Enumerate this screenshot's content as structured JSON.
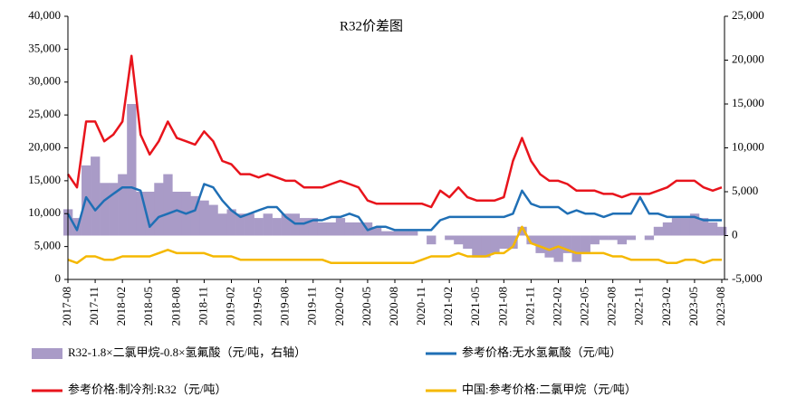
{
  "chart_data": {
    "type": "combo",
    "title": "R32价差图",
    "categories": [
      "2017-08",
      null,
      null,
      "2017-11",
      null,
      null,
      "2018-02",
      null,
      null,
      "2018-05",
      null,
      null,
      "2018-08",
      null,
      null,
      "2018-11",
      null,
      null,
      "2019-02",
      null,
      null,
      "2019-05",
      null,
      null,
      "2019-08",
      null,
      null,
      "2019-11",
      null,
      null,
      "2020-02",
      null,
      null,
      "2020-05",
      null,
      null,
      "2020-08",
      null,
      null,
      "2020-11",
      null,
      null,
      "2021-02",
      null,
      null,
      "2021-05",
      null,
      null,
      "2021-08",
      null,
      null,
      "2021-11",
      null,
      null,
      "2022-02",
      null,
      null,
      "2022-05",
      null,
      null,
      "2022-08",
      null,
      null,
      "2022-11",
      null,
      null,
      "2023-02",
      null,
      null,
      "2023-05",
      null,
      null,
      "2023-08"
    ],
    "series": [
      {
        "name": "R32-1.8×二氯甲烷-0.8×氢氟酸（元/吨，右轴）",
        "type": "area",
        "axis": "y2",
        "color": "#a99bc7",
        "values": [
          3000,
          2000,
          8000,
          9000,
          6000,
          6000,
          7000,
          15000,
          5000,
          5000,
          6000,
          7000,
          5000,
          5000,
          4500,
          4000,
          3500,
          2500,
          3000,
          2500,
          2500,
          2000,
          2500,
          2000,
          2500,
          2500,
          2000,
          2000,
          1500,
          1500,
          2000,
          1500,
          1500,
          1500,
          1000,
          500,
          500,
          500,
          500,
          0,
          -1000,
          0,
          -500,
          -1000,
          -1500,
          -2500,
          -2500,
          -2000,
          -1500,
          -1500,
          1000,
          -1000,
          -2000,
          -2500,
          -3000,
          -2000,
          -3000,
          -2000,
          -1000,
          -500,
          -500,
          -1000,
          -500,
          0,
          -500,
          1000,
          1500,
          2000,
          2000,
          2500,
          2000,
          1500,
          1000
        ]
      },
      {
        "name": "参考价格:无水氢氟酸（元/吨）",
        "type": "line",
        "color": "#1f6fb5",
        "values": [
          10000,
          7500,
          12500,
          10500,
          12000,
          13000,
          14000,
          14000,
          13500,
          8000,
          9500,
          10000,
          10500,
          10000,
          10500,
          14500,
          14000,
          12000,
          10500,
          9500,
          10000,
          10500,
          11000,
          11000,
          9500,
          8500,
          8500,
          9000,
          9000,
          9500,
          9500,
          10000,
          9500,
          7500,
          8000,
          8000,
          7500,
          7500,
          7500,
          7500,
          7500,
          9000,
          9500,
          9500,
          9500,
          9500,
          9500,
          9500,
          9500,
          10000,
          13500,
          11500,
          11000,
          11000,
          11000,
          10000,
          10500,
          10000,
          10000,
          9500,
          10000,
          10000,
          10000,
          12500,
          10000,
          10000,
          9500,
          9500,
          9500,
          9500,
          9000,
          9000,
          9000
        ]
      },
      {
        "name": "参考价格:制冷剂:R32（元/吨）",
        "type": "line",
        "color": "#e8141c",
        "values": [
          16000,
          14000,
          24000,
          24000,
          21000,
          22000,
          24000,
          34000,
          22000,
          19000,
          21000,
          24000,
          21500,
          21000,
          20500,
          22500,
          21000,
          18000,
          17500,
          16000,
          16000,
          15500,
          16000,
          15500,
          15000,
          15000,
          14000,
          14000,
          14000,
          14500,
          15000,
          14500,
          14000,
          12000,
          11500,
          11500,
          11500,
          11500,
          11500,
          11500,
          11000,
          13500,
          12500,
          14000,
          12500,
          12000,
          12000,
          12000,
          12500,
          18000,
          21500,
          18000,
          16000,
          15000,
          15000,
          14500,
          13500,
          13500,
          13500,
          13000,
          13000,
          12500,
          13000,
          13000,
          13000,
          13500,
          14000,
          15000,
          15000,
          15000,
          14000,
          13500,
          14000
        ]
      },
      {
        "name": "中国:参考价格:二氯甲烷（元/吨）",
        "type": "line",
        "color": "#f5b800",
        "values": [
          3000,
          2500,
          3500,
          3500,
          3000,
          3000,
          3500,
          3500,
          3500,
          3500,
          4000,
          4500,
          4000,
          4000,
          4000,
          4000,
          3500,
          3500,
          3500,
          3000,
          3000,
          3000,
          3000,
          3000,
          3000,
          3000,
          3000,
          3000,
          3000,
          2500,
          2500,
          2500,
          2500,
          2500,
          2500,
          2500,
          2500,
          2500,
          2500,
          3000,
          3500,
          3500,
          3500,
          4000,
          3500,
          3500,
          3500,
          4000,
          4000,
          5000,
          8000,
          5500,
          5000,
          4500,
          5000,
          4500,
          4000,
          4000,
          4000,
          4000,
          3500,
          3500,
          3000,
          3000,
          3000,
          3000,
          2500,
          2500,
          3000,
          3000,
          2500,
          3000,
          3000
        ]
      }
    ],
    "ylim": [
      0,
      40000
    ],
    "yticks": [
      0,
      {
        "value": 5000,
        "label": "5,000"
      },
      {
        "value": 10000,
        "label": "10,000"
      },
      {
        "value": 15000,
        "label": "15,000"
      },
      {
        "value": 20000,
        "label": "20,000"
      },
      {
        "value": 25000,
        "label": "25,000"
      },
      {
        "value": 30000,
        "label": "30,000"
      },
      {
        "value": 35000,
        "label": "35,000"
      },
      {
        "value": 40000,
        "label": "40,000"
      }
    ],
    "y2lim": [
      -5000,
      25000
    ],
    "y2ticks": [
      {
        "value": -5000,
        "label": "-5,000"
      },
      0,
      {
        "value": 5000,
        "label": "5,000"
      },
      {
        "value": 10000,
        "label": "10,000"
      },
      {
        "value": 15000,
        "label": "15,000"
      },
      {
        "value": 20000,
        "label": "20,000"
      },
      {
        "value": 25000,
        "label": "25,000"
      }
    ],
    "grid": false
  }
}
